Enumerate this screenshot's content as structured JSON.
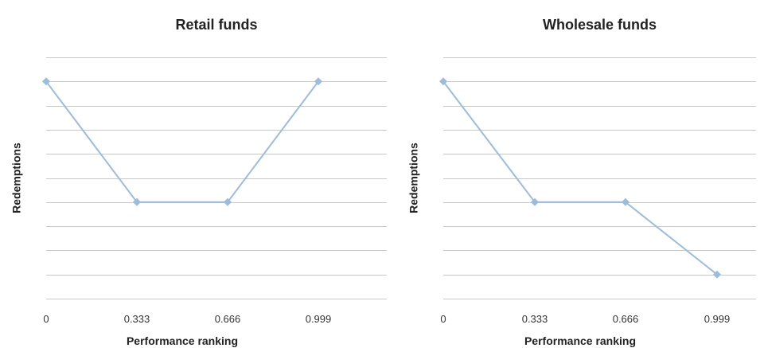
{
  "chart_data": [
    {
      "type": "line",
      "title": "Retail funds",
      "xlabel": "Performance ranking",
      "ylabel": "Redemptions",
      "x": [
        0,
        0.333,
        0.666,
        0.999
      ],
      "x_tick_labels": [
        "0",
        "0.333",
        "0.666",
        "0.999"
      ],
      "series": [
        {
          "values": [
            9,
            4,
            4,
            9
          ]
        }
      ],
      "ylim": [
        0,
        10
      ],
      "grid": true,
      "legend": "none",
      "y_tick_labels_shown": false,
      "line_color": "#9bbcdb",
      "marker": "diamond"
    },
    {
      "type": "line",
      "title": "Wholesale funds",
      "xlabel": "Performance ranking",
      "ylabel": "Redemptions",
      "x": [
        0,
        0.333,
        0.666,
        0.999
      ],
      "x_tick_labels": [
        "0",
        "0.333",
        "0.666",
        "0.999"
      ],
      "series": [
        {
          "values": [
            9,
            4,
            4,
            1
          ]
        }
      ],
      "ylim": [
        0,
        10
      ],
      "grid": true,
      "legend": "none",
      "y_tick_labels_shown": false,
      "line_color": "#9bbcdb",
      "marker": "diamond"
    }
  ]
}
